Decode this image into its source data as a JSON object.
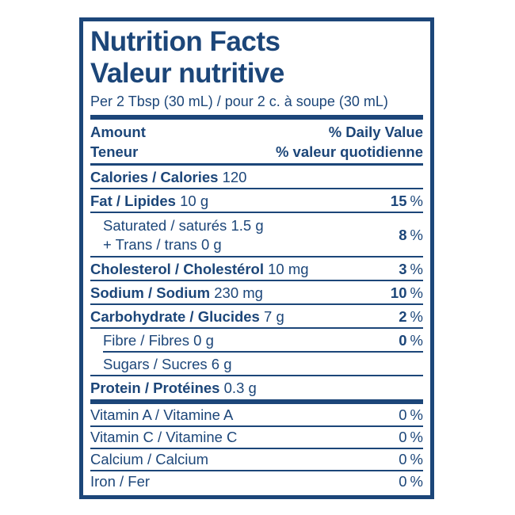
{
  "colors": {
    "ink": "#1c4679",
    "background": "#ffffff"
  },
  "units": {
    "percent": "%"
  },
  "title": {
    "en": "Nutrition Facts",
    "fr": "Valeur nutritive"
  },
  "serving": "Per 2 Tbsp (30 mL) / pour 2 c. à soupe (30 mL)",
  "header": {
    "amount_en": "Amount",
    "amount_fr": "Teneur",
    "daily_value_en": "% Daily Value",
    "daily_value_fr": "% valeur quotidienne"
  },
  "calories": {
    "label": "Calories / Calories",
    "amount": "120"
  },
  "nutrients": [
    {
      "label": "Fat / Lipides",
      "amount": "10 g",
      "dv": "15"
    },
    {
      "label": "Saturated / saturés",
      "amount": "1.5 g",
      "label2": "+ Trans / trans",
      "amount2": "0 g",
      "dv": "8"
    },
    {
      "label": "Cholesterol / Cholestérol",
      "amount": "10 mg",
      "dv": "3"
    },
    {
      "label": "Sodium / Sodium",
      "amount": "230 mg",
      "dv": "10"
    },
    {
      "label": "Carbohydrate / Glucides",
      "amount": "7 g",
      "dv": "2"
    },
    {
      "label": "Fibre / Fibres",
      "amount": "0 g",
      "dv": "0"
    },
    {
      "label": "Sugars / Sucres",
      "amount": "6 g"
    },
    {
      "label": "Protein / Protéines",
      "amount": "0.3 g"
    }
  ],
  "micronutrients": [
    {
      "label": "Vitamin A / Vitamine A",
      "dv": "0"
    },
    {
      "label": "Vitamin C / Vitamine C",
      "dv": "0"
    },
    {
      "label": "Calcium / Calcium",
      "dv": "0"
    },
    {
      "label": "Iron / Fer",
      "dv": "0"
    }
  ]
}
